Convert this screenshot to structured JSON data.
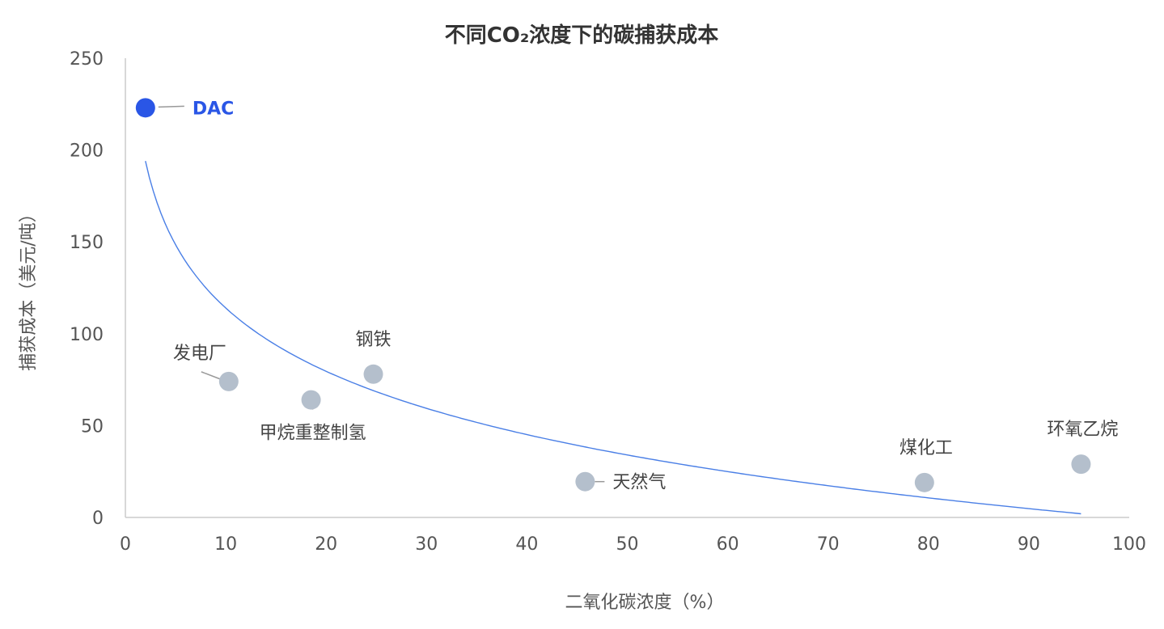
{
  "chart_data": {
    "type": "scatter",
    "title": "不同CO₂浓度下的碳捕获成本",
    "xlabel": "二氧化碳浓度（%）",
    "ylabel": "捕获成本（美元/吨）",
    "xlim": [
      0,
      100
    ],
    "ylim": [
      0,
      250
    ],
    "x_ticks": [
      "0",
      "10",
      "20",
      "30",
      "40",
      "50",
      "60",
      "70",
      "80",
      "90",
      "100"
    ],
    "y_ticks": [
      "0",
      "50",
      "100",
      "150",
      "200",
      "250"
    ],
    "grid": false,
    "points": [
      {
        "label": "DAC",
        "x": 2,
        "y": 223,
        "highlight": true
      },
      {
        "label": "发电厂",
        "x": 10.3,
        "y": 74,
        "highlight": false
      },
      {
        "label": "甲烷重整制氢",
        "x": 18.5,
        "y": 64,
        "highlight": false
      },
      {
        "label": "钢铁",
        "x": 24.7,
        "y": 78,
        "highlight": false
      },
      {
        "label": "天然气",
        "x": 45.8,
        "y": 19.5,
        "highlight": false
      },
      {
        "label": "煤化工",
        "x": 79.6,
        "y": 19,
        "highlight": false
      },
      {
        "label": "环氧乙烷",
        "x": 95.2,
        "y": 29,
        "highlight": false
      }
    ],
    "trendline": {
      "type": "logarithmic",
      "from": [
        2,
        194
      ],
      "to": [
        95.2,
        2
      ]
    },
    "colors": {
      "highlight": "#2a56e6",
      "point": "#b4bfcc",
      "trend": "#4a7fe6",
      "axis": "#cccccc"
    }
  }
}
